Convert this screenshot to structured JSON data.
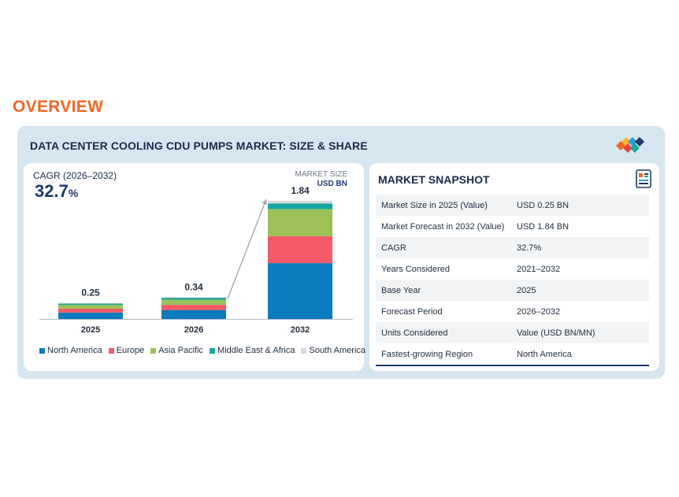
{
  "header": {
    "overview_label": "OVERVIEW"
  },
  "panel": {
    "title": "DATA CENTER COOLING CDU PUMPS MARKET: SIZE & SHARE"
  },
  "colors": {
    "accent": "#f26522",
    "north_america": "#0c7bbf",
    "europe": "#f45b69",
    "asia_pacific": "#9bc158",
    "middle_east_africa": "#17a89e",
    "south_america": "#d8d8d8"
  },
  "chart_panel": {
    "cagr_label": "CAGR (2026–2032)",
    "cagr_value": "32.7",
    "cagr_unit": "%",
    "market_size_label": "MARKET SIZE",
    "market_size_unit": "USD BN"
  },
  "chart_data": {
    "type": "bar",
    "stacked": true,
    "categories": [
      "2025",
      "2026",
      "2032"
    ],
    "totals": [
      0.25,
      0.34,
      1.84
    ],
    "total_labels": [
      "0.25",
      "0.34",
      "1.84"
    ],
    "series": [
      {
        "name": "North America",
        "color": "#0c7bbf",
        "values": [
          0.1,
          0.14,
          0.87
        ]
      },
      {
        "name": "Europe",
        "color": "#f45b69",
        "values": [
          0.06,
          0.08,
          0.42
        ]
      },
      {
        "name": "Asia Pacific",
        "color": "#9bc158",
        "values": [
          0.06,
          0.08,
          0.42
        ]
      },
      {
        "name": "Middle East & Africa",
        "color": "#17a89e",
        "values": [
          0.02,
          0.03,
          0.09
        ]
      },
      {
        "name": "South America",
        "color": "#d8d8d8",
        "values": [
          0.01,
          0.01,
          0.04
        ]
      }
    ],
    "ylim": [
      0,
      1.84
    ],
    "trend_arrow": true,
    "legend_position": "bottom"
  },
  "snapshot": {
    "title": "MARKET SNAPSHOT",
    "icon": "report-icon",
    "rows": [
      {
        "label": "Market Size in 2025 (Value)",
        "value": "USD 0.25 BN"
      },
      {
        "label": "Market Forecast in 2032 (Value)",
        "value": "USD 1.84 BN"
      },
      {
        "label": "CAGR",
        "value": "32.7%"
      },
      {
        "label": "Years Considered",
        "value": "2021–2032"
      },
      {
        "label": "Base Year",
        "value": "2025"
      },
      {
        "label": "Forecast Period",
        "value": "2026–2032"
      },
      {
        "label": "Units Considered",
        "value": "Value (USD BN/MN)"
      },
      {
        "label": "Fastest-growing Region",
        "value": "North America"
      }
    ]
  }
}
